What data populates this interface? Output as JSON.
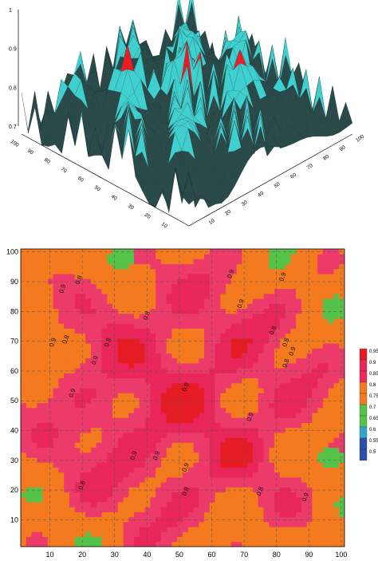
{
  "surface": {
    "z_ticks": [
      "1",
      "0.9",
      "0.8",
      "0.7"
    ],
    "left_axis_ticks": [
      "100",
      "90",
      "80",
      "70",
      "60",
      "50",
      "40",
      "30",
      "20",
      "10"
    ],
    "right_axis_ticks": [
      "100",
      "90",
      "80",
      "70",
      "60",
      "50",
      "40",
      "30",
      "20",
      "10"
    ],
    "colors": {
      "high": "#ee1b24",
      "mid": "#3fcfcf",
      "low": "#2a4a4a",
      "mesh": "#1a2e2e"
    }
  },
  "chart_data": [
    {
      "type": "surface",
      "title": "",
      "xlim": [
        0,
        100
      ],
      "ylim": [
        0,
        100
      ],
      "zlim": [
        0.7,
        1.0
      ],
      "z_ticks": [
        0.7,
        0.8,
        0.9,
        1.0
      ],
      "grid": true,
      "legend": "none"
    },
    {
      "type": "heatmap",
      "title": "",
      "xlabel": "",
      "ylabel": "",
      "xlim": [
        1,
        101
      ],
      "ylim": [
        1,
        101
      ],
      "x_ticks": [
        10,
        20,
        30,
        40,
        50,
        60,
        70,
        80,
        90,
        100
      ],
      "y_ticks": [
        10,
        20,
        30,
        40,
        50,
        60,
        70,
        80,
        90,
        100
      ],
      "grid": true,
      "legend": "right",
      "colorbar": {
        "levels": [
          0.5,
          0.55,
          0.6,
          0.65,
          0.7,
          0.75,
          0.8,
          0.85,
          0.9,
          0.95
        ],
        "labels": [
          "0.95",
          "0.9",
          "0.85",
          "0.8",
          "0.75",
          "0.7",
          "0.65",
          "0.6",
          "0.55",
          "0.5"
        ],
        "colors": [
          "#2a4fa8",
          "#2a4fa8",
          "#35a4c8",
          "#55c24a",
          "#55c24a",
          "#f47a1f",
          "#f47a1f",
          "#f0275a",
          "#e8265c",
          "#e51c23"
        ]
      },
      "contour_labels": [
        {
          "text": "0.8",
          "x": 19,
          "y": 89
        },
        {
          "text": "0.9",
          "x": 14,
          "y": 86
        },
        {
          "text": "0.9",
          "x": 66,
          "y": 91
        },
        {
          "text": "0.9",
          "x": 82,
          "y": 90
        },
        {
          "text": "0.8",
          "x": 40,
          "y": 77
        },
        {
          "text": "0.9",
          "x": 69,
          "y": 81
        },
        {
          "text": "0.9",
          "x": 11,
          "y": 68
        },
        {
          "text": "0.8",
          "x": 15,
          "y": 69
        },
        {
          "text": "0.8",
          "x": 28,
          "y": 68
        },
        {
          "text": "0.9",
          "x": 24,
          "y": 62
        },
        {
          "text": "0.8",
          "x": 79,
          "y": 72
        },
        {
          "text": "0.8",
          "x": 83,
          "y": 68
        },
        {
          "text": "0.9",
          "x": 85,
          "y": 65
        },
        {
          "text": "0.8",
          "x": 83,
          "y": 61
        },
        {
          "text": "0.9",
          "x": 17,
          "y": 51
        },
        {
          "text": "0.9",
          "x": 52,
          "y": 53
        },
        {
          "text": "0.9",
          "x": 72,
          "y": 43
        },
        {
          "text": "0.9",
          "x": 36,
          "y": 30
        },
        {
          "text": "0.9",
          "x": 43,
          "y": 30
        },
        {
          "text": "0.9",
          "x": 52,
          "y": 26
        },
        {
          "text": "0.8",
          "x": 20,
          "y": 20
        },
        {
          "text": "0.8",
          "x": 52,
          "y": 18
        },
        {
          "text": "0.8",
          "x": 75,
          "y": 18
        },
        {
          "text": "0.9",
          "x": 89,
          "y": 16
        }
      ]
    }
  ]
}
